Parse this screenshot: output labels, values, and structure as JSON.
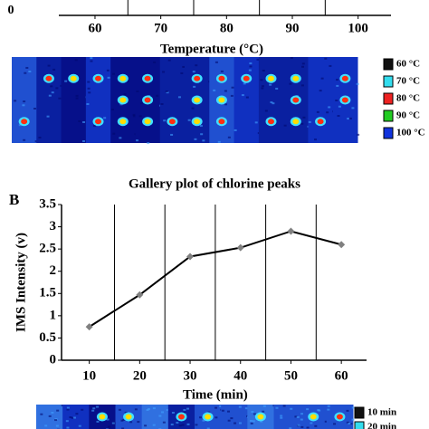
{
  "chart_data": [
    {
      "type": "line",
      "x_label": "Temperature (°C)",
      "xlim": [
        54.5,
        105
      ],
      "xticks": [
        60,
        70,
        80,
        90,
        100
      ],
      "yticks": [
        0
      ],
      "separators": [
        65,
        75,
        85,
        95
      ],
      "series": []
    },
    {
      "type": "line",
      "panel_label": "B",
      "x_label": "Time (min)",
      "y_label": "IMS Intensity (v)",
      "xlim": [
        4.5,
        65
      ],
      "ylim": [
        0,
        3.5
      ],
      "xticks": [
        10,
        20,
        30,
        40,
        50,
        60
      ],
      "yticks": [
        0,
        0.5,
        1,
        1.5,
        2,
        2.5,
        3,
        3.5
      ],
      "separators": [
        15,
        25,
        35,
        45,
        55
      ],
      "x": [
        10,
        20,
        30,
        40,
        50,
        60
      ],
      "series": [
        {
          "name": "IMS Intensity",
          "color": "#000000",
          "marker_color": "#808080",
          "values": [
            0.75,
            1.47,
            2.33,
            2.53,
            2.9,
            2.6
          ]
        }
      ]
    }
  ],
  "galleries": [
    {
      "caption": "Gallery plot of chlorine peaks",
      "legend": [
        {
          "label": "60 °C",
          "color": "#111111"
        },
        {
          "label": "70 °C",
          "color": "#33ddee"
        },
        {
          "label": "80 °C",
          "color": "#ee2222"
        },
        {
          "label": "90 °C",
          "color": "#22cc22"
        },
        {
          "label": "100 °C",
          "color": "#1133dd"
        }
      ]
    },
    {
      "legend": [
        {
          "label": "10 min",
          "color": "#111111"
        },
        {
          "label": "20 min",
          "color": "#33ddee"
        }
      ]
    }
  ]
}
